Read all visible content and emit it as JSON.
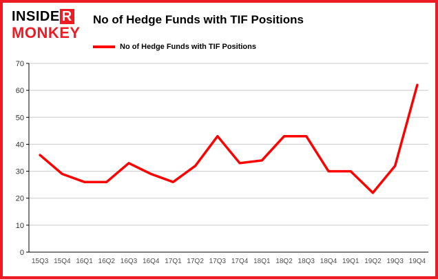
{
  "logo": {
    "insider_prefix": "INSIDE",
    "insider_suffix": "R",
    "monkey": "MONKEY"
  },
  "header": {
    "title": "No of Hedge Funds with TIF Positions"
  },
  "chart_data": {
    "type": "line",
    "title": "No of Hedge Funds with TIF Positions",
    "series_name": "No of Hedge Funds with TIF Positions",
    "categories": [
      "15Q3",
      "15Q4",
      "16Q1",
      "16Q2",
      "16Q3",
      "16Q4",
      "17Q1",
      "17Q2",
      "17Q3",
      "17Q4",
      "18Q1",
      "18Q2",
      "18Q3",
      "18Q4",
      "19Q1",
      "19Q2",
      "19Q3",
      "19Q4"
    ],
    "values": [
      36,
      29,
      26,
      26,
      33,
      29,
      26,
      32,
      43,
      33,
      34,
      43,
      43,
      30,
      30,
      22,
      32,
      62
    ],
    "xlabel": "",
    "ylabel": "",
    "ylim": [
      0,
      70
    ],
    "yticks": [
      0,
      10,
      20,
      30,
      40,
      50,
      60,
      70
    ],
    "grid": true,
    "legend_position": "top-left",
    "line_color": "#ff0000"
  },
  "colors": {
    "accent_red": "#ed1c24",
    "grid_line": "#c9c9c9",
    "axis": "#000000",
    "x_tick_text": "#4d4d4d",
    "y_tick_text": "#333333"
  }
}
